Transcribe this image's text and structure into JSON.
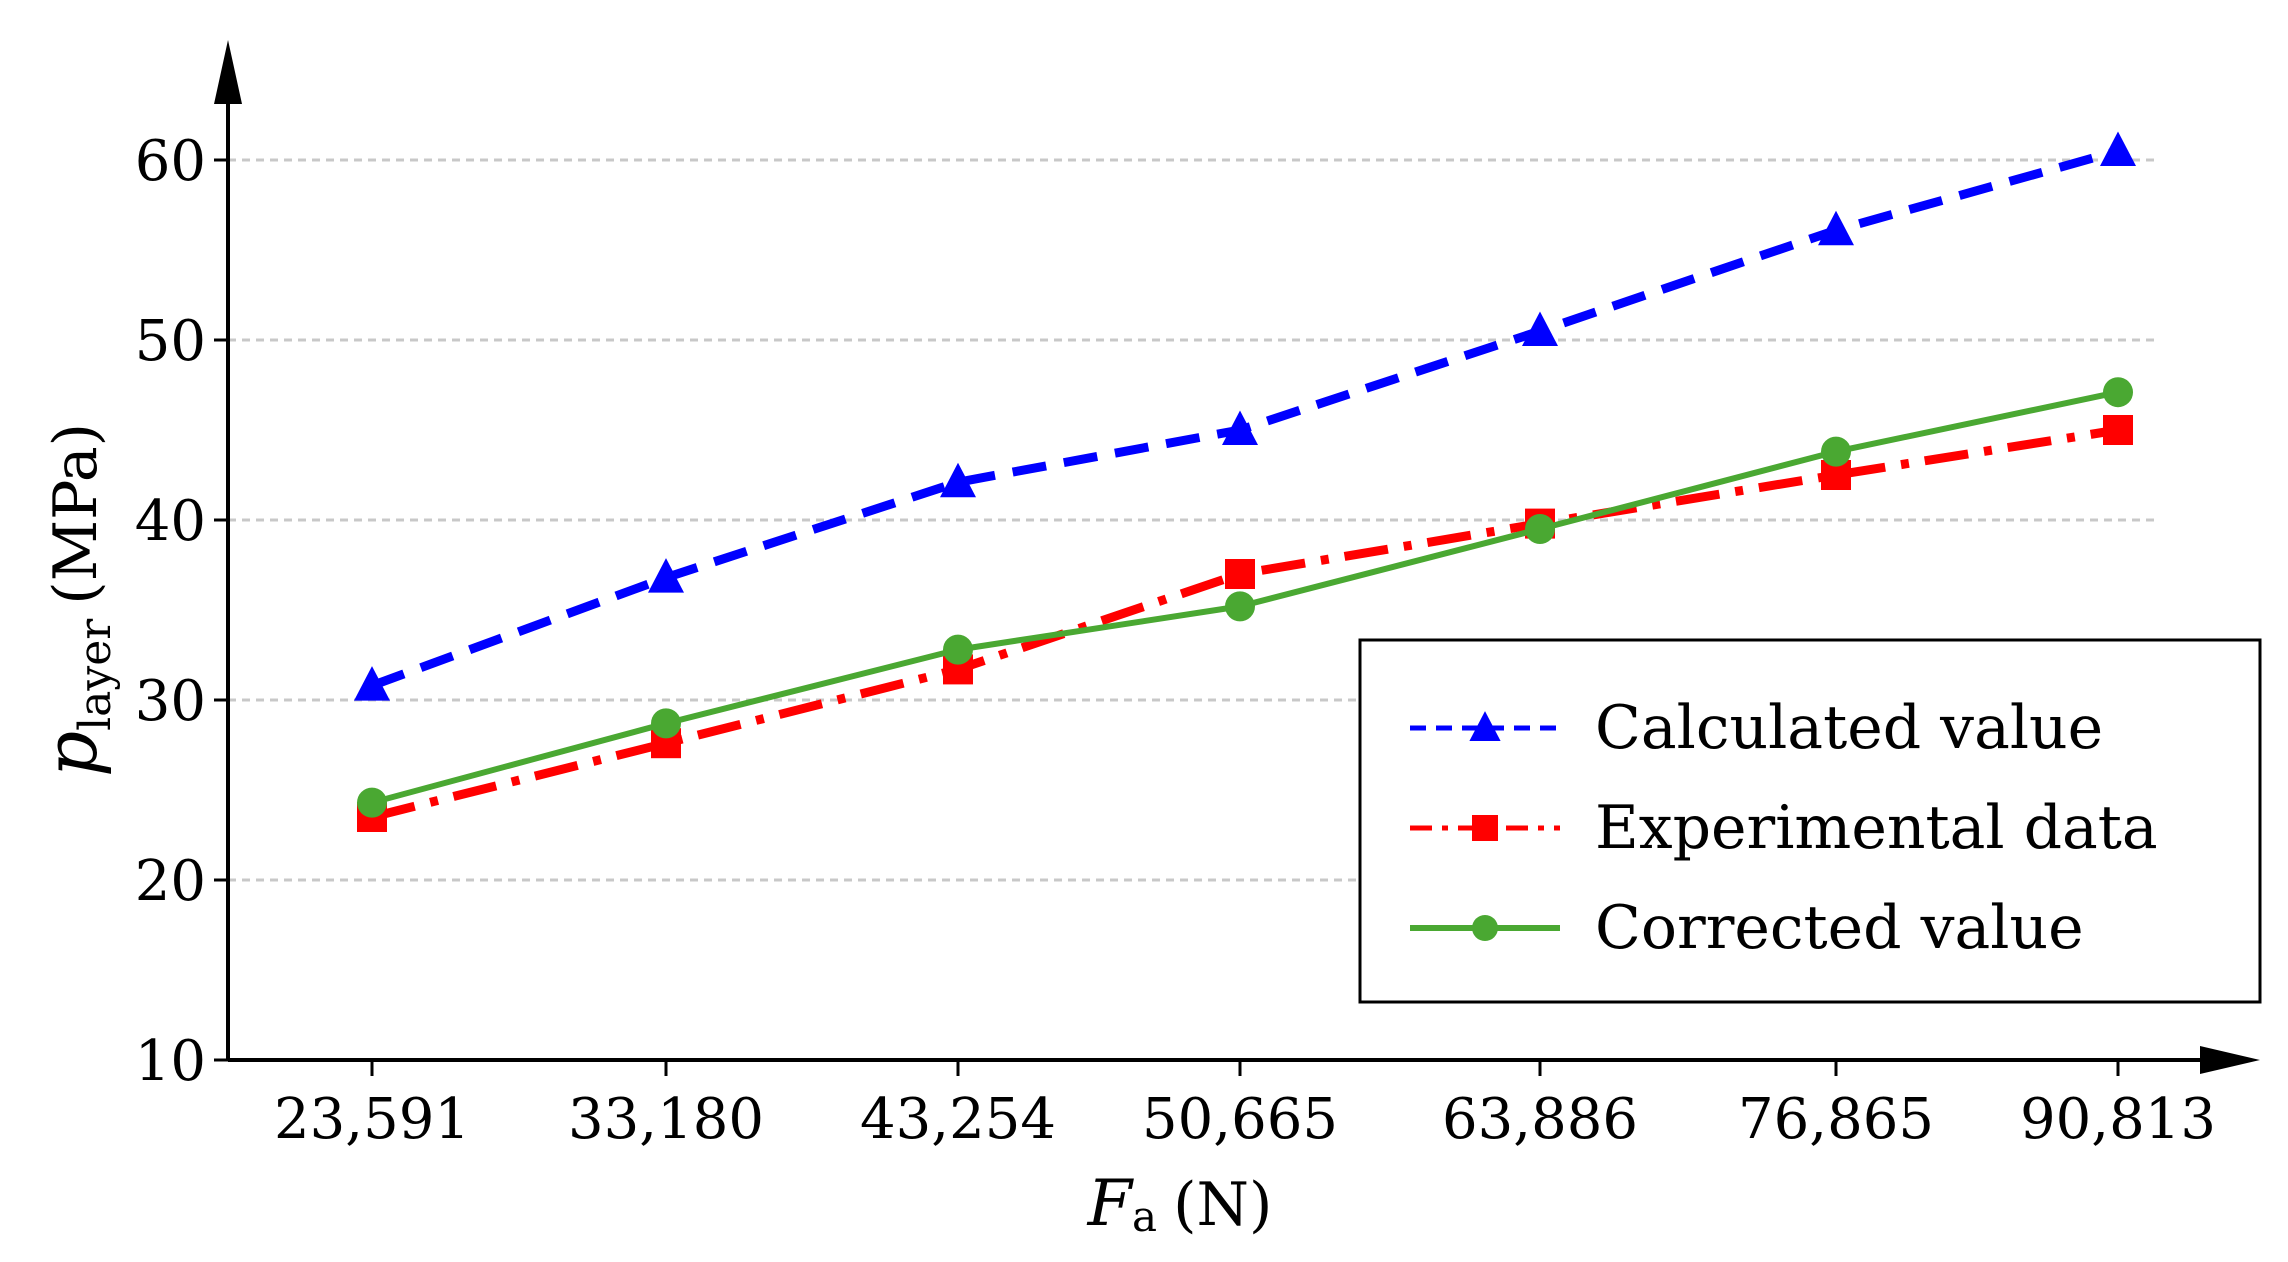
{
  "chart_data": {
    "type": "line",
    "categories": [
      "23,591",
      "33,180",
      "43,254",
      "50,665",
      "63,886",
      "76,865",
      "90,813"
    ],
    "x_label": {
      "symbol": "F",
      "subscript": "a",
      "unit": "(N)"
    },
    "y_label": {
      "symbol": "p",
      "subscript": "layer",
      "unit": "(MPa)"
    },
    "yticks": [
      10,
      20,
      30,
      40,
      50,
      60
    ],
    "ylim": [
      10,
      65
    ],
    "grid": "horizontal dashed",
    "legend_position": "bottom-right",
    "series": [
      {
        "name": "Calculated value",
        "color": "#0000ff",
        "linestyle": "dashed",
        "marker": "triangle",
        "values": [
          30.8,
          36.8,
          42.1,
          45.0,
          50.5,
          56.1,
          60.5
        ]
      },
      {
        "name": "Experimental data",
        "color": "#ff0000",
        "linestyle": "dash-dot",
        "marker": "square",
        "values": [
          23.5,
          27.6,
          31.7,
          37.0,
          39.8,
          42.5,
          45.0
        ]
      },
      {
        "name": "Corrected value",
        "color": "#4aa832",
        "linestyle": "solid",
        "marker": "circle",
        "values": [
          24.3,
          28.7,
          32.8,
          35.2,
          39.5,
          43.8,
          47.1
        ]
      }
    ]
  }
}
